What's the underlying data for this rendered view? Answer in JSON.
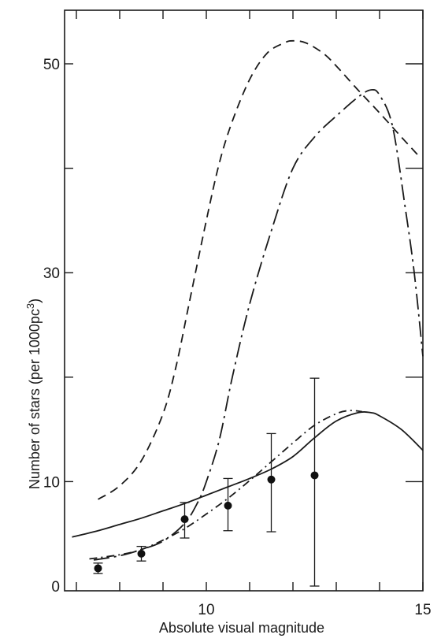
{
  "chart_data": {
    "type": "line",
    "title": "",
    "xlabel": "Absolute visual magnitude",
    "ylabel": "Number of stars (per 1000pc",
    "ylabel_sup": "3",
    "ylabel_close": ")",
    "xlim": [
      6.9,
      15.0
    ],
    "ylim": [
      0,
      55
    ],
    "x_ticks": [
      7,
      8,
      9,
      10,
      11,
      12,
      13,
      14,
      15
    ],
    "x_tick_labels": [
      {
        "value": 10,
        "label": "10"
      },
      {
        "value": 15,
        "label": "15"
      }
    ],
    "y_ticks": [
      10,
      20,
      30,
      40,
      50
    ],
    "y_tick_labels": [
      {
        "value": 0,
        "label": "0"
      },
      {
        "value": 10,
        "label": "10"
      },
      {
        "value": 30,
        "label": "30"
      },
      {
        "value": 50,
        "label": "50"
      }
    ],
    "grid": false,
    "series": [
      {
        "style": "dashed",
        "x": [
          7.5,
          8.0,
          8.5,
          9.0,
          9.3,
          9.6,
          10.0,
          10.3,
          10.6,
          11.0,
          11.4,
          11.8,
          12.0,
          12.3,
          12.7,
          13.0,
          13.5,
          14.0,
          14.5,
          14.9
        ],
        "y": [
          8.3,
          9.6,
          12.0,
          16.5,
          21.0,
          27.0,
          35.0,
          40.5,
          44.5,
          48.5,
          51.0,
          52.0,
          52.2,
          52.0,
          51.0,
          49.8,
          47.5,
          45.3,
          43.0,
          41.2
        ]
      },
      {
        "style": "long-dash-dot",
        "x": [
          7.4,
          8.0,
          8.5,
          9.0,
          9.5,
          9.8,
          10.0,
          10.3,
          10.6,
          11.0,
          11.5,
          12.0,
          12.5,
          13.0,
          13.5,
          13.8,
          14.0,
          14.3,
          14.6,
          14.8,
          15.0
        ],
        "y": [
          2.5,
          2.9,
          3.5,
          4.3,
          6.0,
          8.0,
          10.0,
          14.0,
          20.0,
          27.0,
          34.0,
          40.0,
          43.0,
          45.0,
          46.8,
          47.5,
          47.0,
          44.0,
          36.0,
          30.0,
          22.0
        ]
      },
      {
        "style": "solid",
        "x": [
          6.9,
          7.5,
          8.0,
          8.5,
          9.0,
          9.5,
          10.0,
          10.5,
          11.0,
          11.5,
          12.0,
          12.5,
          13.0,
          13.5,
          13.8,
          14.0,
          14.5,
          15.0
        ],
        "y": [
          4.7,
          5.3,
          5.9,
          6.5,
          7.2,
          7.9,
          8.7,
          9.5,
          10.3,
          11.2,
          12.4,
          14.2,
          15.8,
          16.6,
          16.6,
          16.3,
          15.0,
          13.0
        ]
      },
      {
        "style": "dash-dot",
        "x": [
          7.3,
          8.0,
          8.5,
          9.0,
          9.5,
          10.0,
          10.5,
          11.0,
          11.5,
          12.0,
          12.5,
          13.0,
          13.3,
          13.6
        ],
        "y": [
          2.6,
          3.0,
          3.5,
          4.4,
          5.5,
          6.9,
          8.4,
          10.1,
          11.9,
          13.7,
          15.4,
          16.5,
          16.8,
          16.7
        ]
      }
    ],
    "observations": {
      "x": [
        7.5,
        8.5,
        9.5,
        10.5,
        11.5,
        12.5
      ],
      "y": [
        1.7,
        3.1,
        6.4,
        7.7,
        10.2,
        10.6
      ],
      "err_low": [
        1.2,
        2.4,
        4.6,
        5.3,
        5.2,
        0.0
      ],
      "err_high": [
        2.2,
        3.8,
        8.0,
        10.3,
        14.6,
        19.9
      ]
    }
  }
}
